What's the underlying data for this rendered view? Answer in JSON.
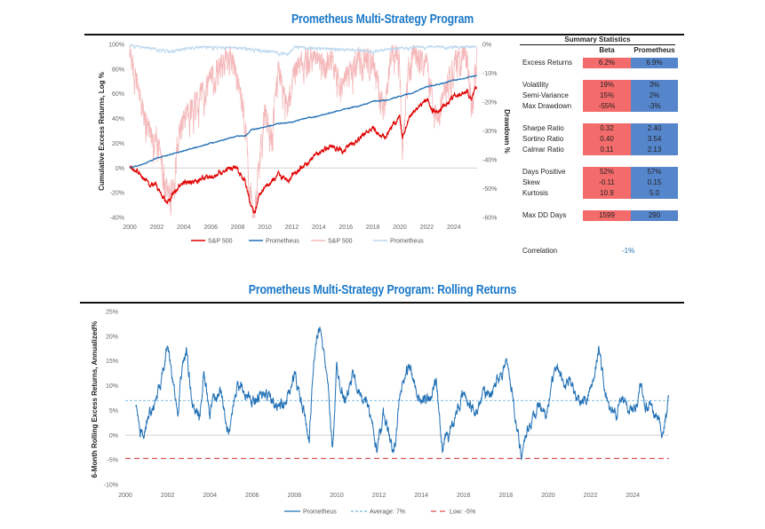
{
  "top_title": "Prometheus Multi-Strategy Program",
  "bottom_title": "Prometheus Multi-Strategy Program: Rolling Returns",
  "colors": {
    "title": "#1a78c8",
    "sp500": "#e00000",
    "prometheus": "#1f6fb5",
    "sp500_dd": "#f5b8ba",
    "prometheus_dd": "#bcd7ee",
    "beta_cell": "#f46b6b",
    "prometheus_cell": "#5586cc",
    "average": "#6fb8e0",
    "low": "#e05050"
  },
  "summary": {
    "title": "Summary Statistics",
    "col_beta": "Beta",
    "col_prometheus": "Prometheus",
    "groups": [
      [
        {
          "label": "Excess Returns",
          "beta": "6.2%",
          "prometheus": "6.9%"
        }
      ],
      [
        {
          "label": "Volatility",
          "beta": "19%",
          "prometheus": "3%"
        },
        {
          "label": "Semi-Variance",
          "beta": "15%",
          "prometheus": "2%"
        },
        {
          "label": "Max Drawdown",
          "beta": "-55%",
          "prometheus": "-3%"
        }
      ],
      [
        {
          "label": "Sharpe Ratio",
          "beta": "0.32",
          "prometheus": "2.40"
        },
        {
          "label": "Sortino Ratio",
          "beta": "0.40",
          "prometheus": "3.54"
        },
        {
          "label": "Calmar Ratio",
          "beta": "0.11",
          "prometheus": "2.13"
        }
      ],
      [
        {
          "label": "Days Positive",
          "beta": "52%",
          "prometheus": "57%"
        },
        {
          "label": "Skew",
          "beta": "-0.11",
          "prometheus": "0.15"
        },
        {
          "label": "Kurtosis",
          "beta": "10.9",
          "prometheus": "5.0"
        }
      ],
      [
        {
          "label": "Max DD Days",
          "beta": "1599",
          "prometheus": "290"
        }
      ]
    ],
    "correlation_label": "Correlation",
    "correlation_value": "-1%"
  },
  "chart_data": [
    {
      "type": "line",
      "title": "Prometheus Multi-Strategy Program",
      "ylabel": "Cumulative Excess Returns, Log %",
      "y2label": "Drawdown %",
      "xlim": [
        2000,
        2025.7
      ],
      "ylim": [
        -40,
        100
      ],
      "y2lim": [
        -60,
        0
      ],
      "xticks": [
        "2000",
        "2002",
        "2004",
        "2006",
        "2008",
        "2010",
        "2012",
        "2014",
        "2016",
        "2018",
        "2020",
        "2022",
        "2024"
      ],
      "yticks": [
        "100%",
        "80%",
        "60%",
        "40%",
        "20%",
        "0%",
        "-20%",
        "-40%"
      ],
      "y2ticks": [
        "0%",
        "-10%",
        "-20%",
        "-30%",
        "-40%",
        "-50%",
        "-60%"
      ],
      "legend": [
        "S&P 500",
        "Prometheus",
        "S&P 500",
        "Prometheus"
      ],
      "legend_position": "bottom",
      "series": [
        {
          "name": "S&P 500",
          "axis": "left",
          "style": "sp500",
          "noise": 2.2,
          "points": [
            [
              2000,
              0
            ],
            [
              2000.5,
              -2
            ],
            [
              2001,
              -8
            ],
            [
              2001.5,
              -13
            ],
            [
              2002,
              -15
            ],
            [
              2002.5,
              -25
            ],
            [
              2002.8,
              -27
            ],
            [
              2003.2,
              -22
            ],
            [
              2003.6,
              -15
            ],
            [
              2004,
              -12
            ],
            [
              2005,
              -10
            ],
            [
              2006,
              -7
            ],
            [
              2007,
              -2
            ],
            [
              2007.8,
              0
            ],
            [
              2008.5,
              -8
            ],
            [
              2008.9,
              -28
            ],
            [
              2009.2,
              -37
            ],
            [
              2009.6,
              -22
            ],
            [
              2010,
              -15
            ],
            [
              2010.5,
              -12
            ],
            [
              2011,
              -5
            ],
            [
              2011.7,
              -12
            ],
            [
              2012,
              -7
            ],
            [
              2013,
              2
            ],
            [
              2014,
              13
            ],
            [
              2015,
              18
            ],
            [
              2015.7,
              14
            ],
            [
              2016,
              16
            ],
            [
              2017,
              24
            ],
            [
              2018,
              32
            ],
            [
              2018.9,
              24
            ],
            [
              2019.3,
              33
            ],
            [
              2020,
              40
            ],
            [
              2020.2,
              24
            ],
            [
              2020.6,
              38
            ],
            [
              2021,
              46
            ],
            [
              2022,
              56
            ],
            [
              2022.4,
              46
            ],
            [
              2022.8,
              45
            ],
            [
              2023,
              48
            ],
            [
              2024,
              58
            ],
            [
              2025,
              63
            ],
            [
              2025.3,
              55
            ],
            [
              2025.7,
              66
            ]
          ]
        },
        {
          "name": "Prometheus",
          "axis": "left",
          "style": "prometheus",
          "noise": 0.4,
          "points": [
            [
              2000,
              0
            ],
            [
              2001,
              3
            ],
            [
              2002,
              8
            ],
            [
              2003,
              11
            ],
            [
              2004,
              14
            ],
            [
              2005,
              17
            ],
            [
              2006,
              20
            ],
            [
              2007,
              23
            ],
            [
              2008,
              26
            ],
            [
              2008.6,
              26
            ],
            [
              2009,
              31
            ],
            [
              2010,
              33
            ],
            [
              2011,
              36
            ],
            [
              2012,
              37
            ],
            [
              2013,
              40
            ],
            [
              2014,
              42
            ],
            [
              2015,
              45
            ],
            [
              2016,
              48
            ],
            [
              2017,
              50
            ],
            [
              2018,
              54
            ],
            [
              2019,
              55
            ],
            [
              2020,
              58
            ],
            [
              2021,
              61
            ],
            [
              2022,
              66
            ],
            [
              2023,
              68
            ],
            [
              2024,
              71
            ],
            [
              2025,
              73
            ],
            [
              2025.7,
              75
            ]
          ]
        },
        {
          "name": "S&P 500",
          "axis": "right",
          "style": "sp500_dd",
          "noise": 6,
          "points": [
            [
              2000,
              0
            ],
            [
              2000.3,
              -5
            ],
            [
              2001,
              -20
            ],
            [
              2001.7,
              -30
            ],
            [
              2002,
              -28
            ],
            [
              2002.8,
              -48
            ],
            [
              2003.2,
              -45
            ],
            [
              2003.5,
              -30
            ],
            [
              2004,
              -22
            ],
            [
              2005,
              -15
            ],
            [
              2006,
              -8
            ],
            [
              2007,
              -2
            ],
            [
              2007.5,
              0
            ],
            [
              2008,
              -10
            ],
            [
              2008.5,
              -20
            ],
            [
              2008.9,
              -45
            ],
            [
              2009.2,
              -57
            ],
            [
              2009.6,
              -35
            ],
            [
              2010,
              -20
            ],
            [
              2010.5,
              -28
            ],
            [
              2011,
              -5
            ],
            [
              2011.7,
              -20
            ],
            [
              2012,
              -8
            ],
            [
              2013,
              0
            ],
            [
              2014,
              -3
            ],
            [
              2015,
              -2
            ],
            [
              2015.7,
              -12
            ],
            [
              2016,
              -8
            ],
            [
              2017,
              0
            ],
            [
              2018,
              -2
            ],
            [
              2018.9,
              -20
            ],
            [
              2019.3,
              0
            ],
            [
              2020,
              0
            ],
            [
              2020.2,
              -34
            ],
            [
              2020.6,
              -5
            ],
            [
              2021,
              0
            ],
            [
              2022,
              -3
            ],
            [
              2022.8,
              -25
            ],
            [
              2023,
              -18
            ],
            [
              2024,
              -2
            ],
            [
              2025,
              0
            ],
            [
              2025.3,
              -19
            ],
            [
              2025.7,
              0
            ]
          ]
        },
        {
          "name": "Prometheus",
          "axis": "right",
          "style": "prometheus_dd",
          "noise": 0.6,
          "points": [
            [
              2000,
              0
            ],
            [
              2001.5,
              -1
            ],
            [
              2003,
              -2
            ],
            [
              2005,
              -0.5
            ],
            [
              2008.5,
              -1
            ],
            [
              2011.8,
              -3
            ],
            [
              2012.2,
              -0.5
            ],
            [
              2018,
              -2
            ],
            [
              2021,
              -0.5
            ],
            [
              2025.7,
              -0.5
            ]
          ]
        }
      ]
    },
    {
      "type": "line",
      "title": "Prometheus Multi-Strategy Program: Rolling Returns",
      "ylabel": "6-Month Rolling Excess Returns, Annualized%",
      "xlim": [
        2000,
        2025.7
      ],
      "ylim": [
        -10,
        25
      ],
      "xticks": [
        "2000",
        "2002",
        "2004",
        "2006",
        "2008",
        "2010",
        "2012",
        "2014",
        "2016",
        "2018",
        "2020",
        "2022",
        "2024"
      ],
      "yticks": [
        "25%",
        "20%",
        "15%",
        "10%",
        "5%",
        "0%",
        "-5%",
        "-10%"
      ],
      "legend": [
        "Prometheus",
        "Average: 7%",
        "Low: -5%"
      ],
      "legend_position": "bottom",
      "average": 7,
      "low": -4.7,
      "series": [
        {
          "name": "Prometheus",
          "style": "prometheus",
          "noise": 1.6,
          "points": [
            [
              2000.5,
              6.5
            ],
            [
              2000.7,
              0
            ],
            [
              2001,
              2
            ],
            [
              2001.5,
              8
            ],
            [
              2001.8,
              12
            ],
            [
              2002,
              18
            ],
            [
              2002.3,
              10
            ],
            [
              2002.5,
              3
            ],
            [
              2002.7,
              14
            ],
            [
              2002.9,
              17
            ],
            [
              2003.2,
              6
            ],
            [
              2003.5,
              2
            ],
            [
              2003.7,
              12
            ],
            [
              2004,
              5
            ],
            [
              2004.5,
              9
            ],
            [
              2004.9,
              0
            ],
            [
              2005.2,
              9
            ],
            [
              2005.5,
              11
            ],
            [
              2006,
              6
            ],
            [
              2006.5,
              8
            ],
            [
              2007,
              7
            ],
            [
              2007.5,
              6
            ],
            [
              2008,
              12
            ],
            [
              2008.4,
              5
            ],
            [
              2008.7,
              0
            ],
            [
              2009,
              20
            ],
            [
              2009.3,
              21
            ],
            [
              2009.6,
              8
            ],
            [
              2009.8,
              -3
            ],
            [
              2010,
              14
            ],
            [
              2010.4,
              7
            ],
            [
              2010.8,
              12
            ],
            [
              2011,
              9
            ],
            [
              2011.5,
              6
            ],
            [
              2011.9,
              -4
            ],
            [
              2012.2,
              5
            ],
            [
              2012.7,
              -4
            ],
            [
              2013,
              8
            ],
            [
              2013.4,
              14
            ],
            [
              2013.7,
              10
            ],
            [
              2014,
              6
            ],
            [
              2014.5,
              9
            ],
            [
              2014.7,
              10
            ],
            [
              2015,
              -4
            ],
            [
              2015.5,
              3
            ],
            [
              2016,
              8
            ],
            [
              2016.5,
              5
            ],
            [
              2017,
              8
            ],
            [
              2017.5,
              10
            ],
            [
              2018,
              15
            ],
            [
              2018.3,
              9
            ],
            [
              2018.7,
              -4
            ],
            [
              2019,
              1
            ],
            [
              2019.5,
              6
            ],
            [
              2020,
              5
            ],
            [
              2020.3,
              13
            ],
            [
              2020.8,
              10
            ],
            [
              2021,
              12
            ],
            [
              2021.3,
              7
            ],
            [
              2021.8,
              8
            ],
            [
              2022,
              9
            ],
            [
              2022.4,
              18
            ],
            [
              2022.7,
              8
            ],
            [
              2023,
              4
            ],
            [
              2023.5,
              7
            ],
            [
              2024,
              5
            ],
            [
              2024.4,
              10
            ],
            [
              2024.8,
              5
            ],
            [
              2025.2,
              3
            ],
            [
              2025.4,
              0
            ],
            [
              2025.6,
              4
            ],
            [
              2025.7,
              8
            ]
          ]
        }
      ]
    }
  ]
}
